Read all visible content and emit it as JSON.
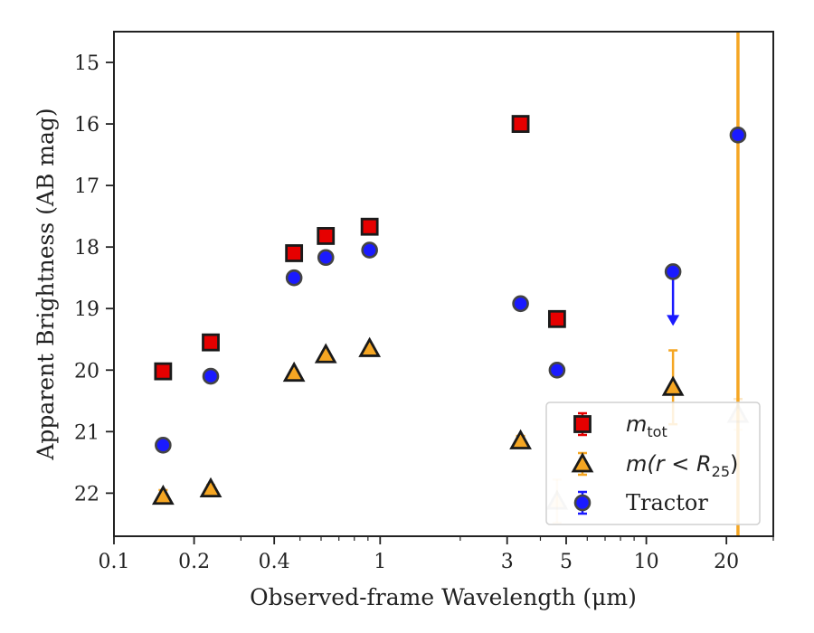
{
  "chart_data": {
    "type": "scatter",
    "xlabel": "Observed-frame Wavelength (μm)",
    "ylabel": "Apparent Brightness (AB mag)",
    "xscale": "log",
    "xlim": [
      0.1,
      30
    ],
    "ylim": [
      22.7,
      14.5
    ],
    "y_inverted": true,
    "x_ticks": [
      {
        "value": 0.1,
        "label": "0.1"
      },
      {
        "value": 0.2,
        "label": "0.2"
      },
      {
        "value": 0.4,
        "label": "0.4"
      },
      {
        "value": 1,
        "label": "1"
      },
      {
        "value": 3,
        "label": "3"
      },
      {
        "value": 5,
        "label": "5"
      },
      {
        "value": 10,
        "label": "10"
      },
      {
        "value": 20,
        "label": "20"
      }
    ],
    "y_ticks": [
      {
        "value": 15,
        "label": "15"
      },
      {
        "value": 16,
        "label": "16"
      },
      {
        "value": 17,
        "label": "17"
      },
      {
        "value": 18,
        "label": "18"
      },
      {
        "value": 19,
        "label": "19"
      },
      {
        "value": 20,
        "label": "20"
      },
      {
        "value": 21,
        "label": "21"
      },
      {
        "value": 22,
        "label": "22"
      }
    ],
    "vertical_line": {
      "x": 22.1,
      "color": "#f5a623"
    },
    "legend_position": "lower right",
    "series": [
      {
        "key": "mtot",
        "legend_main": "m",
        "legend_sub": "tot",
        "marker": "square",
        "color": "#e60000",
        "x": [
          0.153,
          0.231,
          0.475,
          0.625,
          0.913,
          3.37,
          4.62
        ],
        "y": [
          20.02,
          19.55,
          18.1,
          17.82,
          17.67,
          16.0,
          19.17
        ],
        "yerr": [
          0.06,
          0.05,
          0.04,
          0.04,
          0.04,
          0.03,
          0.05
        ]
      },
      {
        "key": "mr25",
        "legend_main": "m(r < R",
        "legend_sub": "25",
        "legend_tail": ")",
        "marker": "triangle",
        "color": "#f5a623",
        "x": [
          0.153,
          0.231,
          0.475,
          0.625,
          0.913,
          3.37,
          4.62,
          12.6,
          22.1
        ],
        "y": [
          22.05,
          21.93,
          20.05,
          19.75,
          19.65,
          21.15,
          22.13,
          20.28,
          20.72
        ],
        "yerr": [
          0.1,
          0.06,
          0.05,
          0.05,
          0.05,
          0.08,
          0.35,
          0.6,
          0.25
        ],
        "faded": [
          false,
          false,
          false,
          false,
          false,
          false,
          true,
          false,
          true
        ]
      },
      {
        "key": "tractor",
        "legend_main": "Tractor",
        "marker": "circle",
        "color": "#1a1aff",
        "x": [
          0.153,
          0.231,
          0.475,
          0.625,
          0.913,
          3.37,
          4.62,
          12.6,
          22.1
        ],
        "y": [
          21.22,
          20.1,
          18.5,
          18.17,
          18.05,
          18.92,
          20.0,
          18.4,
          16.18
        ],
        "yerr": [
          0.08,
          0.07,
          0.05,
          0.05,
          0.05,
          0.05,
          0.07,
          0.0,
          0.05
        ],
        "upper_limit": [
          false,
          false,
          false,
          false,
          false,
          false,
          false,
          true,
          false
        ]
      }
    ]
  }
}
